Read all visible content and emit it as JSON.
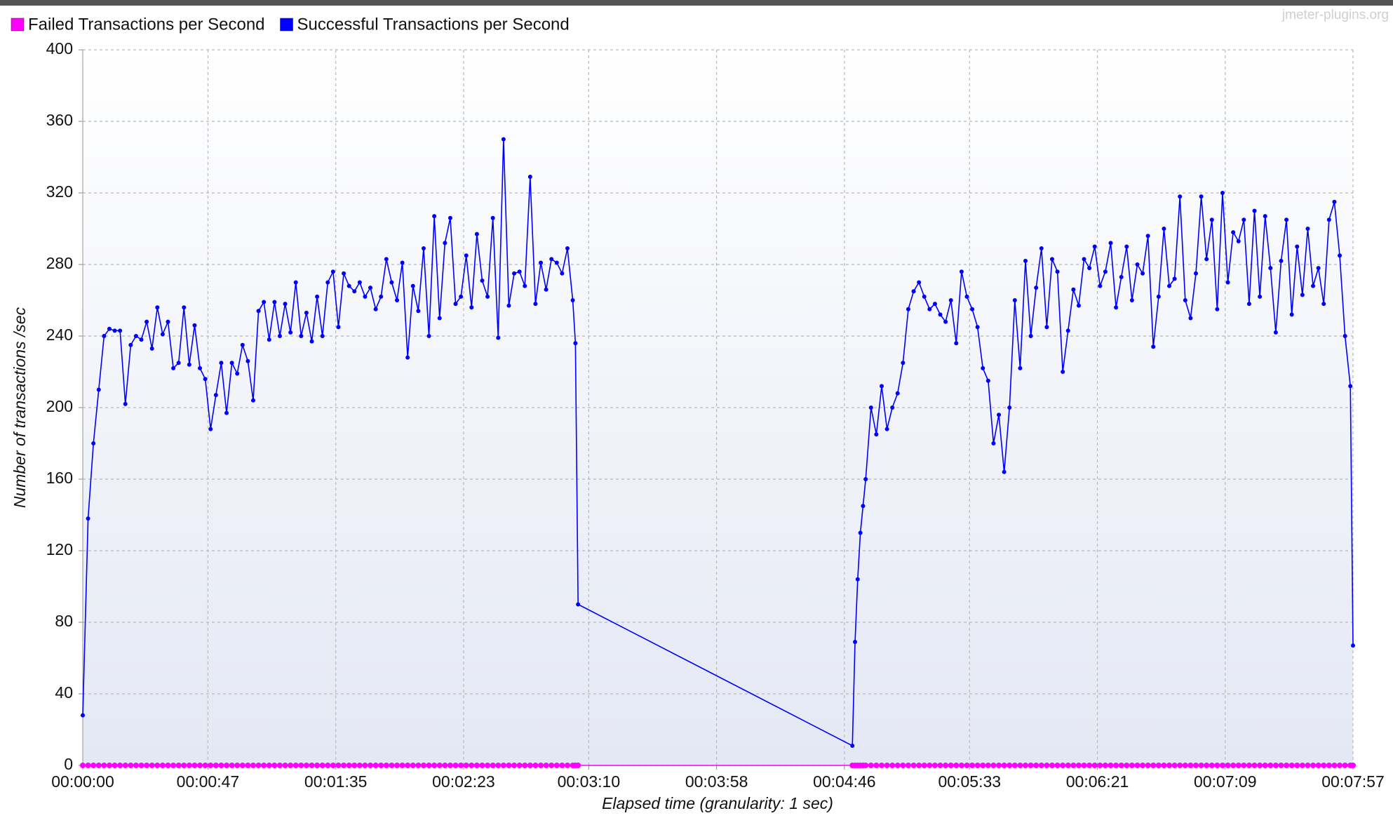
{
  "chart_data": {
    "type": "line",
    "watermark": "jmeter-plugins.org",
    "x_label": "Elapsed time (granularity: 1 sec)",
    "y_label": "Number of transactions /sec",
    "xlim": [
      0,
      477
    ],
    "ylim": [
      0,
      400
    ],
    "xticks": [
      {
        "value": 0,
        "label": "00:00:00"
      },
      {
        "value": 47,
        "label": "00:00:47"
      },
      {
        "value": 95,
        "label": "00:01:35"
      },
      {
        "value": 143,
        "label": "00:02:23"
      },
      {
        "value": 190,
        "label": "00:03:10"
      },
      {
        "value": 238,
        "label": "00:03:58"
      },
      {
        "value": 286,
        "label": "00:04:46"
      },
      {
        "value": 333,
        "label": "00:05:33"
      },
      {
        "value": 381,
        "label": "00:06:21"
      },
      {
        "value": 429,
        "label": "00:07:09"
      },
      {
        "value": 477,
        "label": "00:07:57"
      }
    ],
    "yticks": [
      0,
      40,
      80,
      120,
      160,
      200,
      240,
      280,
      320,
      360,
      400
    ],
    "grid": true,
    "legend": "top-left",
    "x": [
      0,
      2,
      4,
      6,
      8,
      10,
      12,
      14,
      16,
      18,
      20,
      22,
      24,
      26,
      28,
      30,
      32,
      34,
      36,
      38,
      40,
      42,
      44,
      46,
      48,
      50,
      52,
      54,
      56,
      58,
      60,
      62,
      64,
      66,
      68,
      70,
      72,
      74,
      76,
      78,
      80,
      82,
      84,
      86,
      88,
      90,
      92,
      94,
      96,
      98,
      100,
      102,
      104,
      106,
      108,
      110,
      112,
      114,
      116,
      118,
      120,
      122,
      124,
      126,
      128,
      130,
      132,
      134,
      136,
      138,
      140,
      142,
      144,
      146,
      148,
      150,
      152,
      154,
      156,
      158,
      160,
      162,
      164,
      166,
      168,
      170,
      172,
      174,
      176,
      178,
      180,
      182,
      184,
      185,
      186,
      289,
      290,
      291,
      292,
      293,
      294,
      296,
      298,
      300,
      302,
      304,
      306,
      308,
      310,
      312,
      314,
      316,
      318,
      320,
      322,
      324,
      326,
      328,
      330,
      332,
      334,
      336,
      338,
      340,
      342,
      344,
      346,
      348,
      350,
      352,
      354,
      356,
      358,
      360,
      362,
      364,
      366,
      368,
      370,
      372,
      374,
      376,
      378,
      380,
      382,
      384,
      386,
      388,
      390,
      392,
      394,
      396,
      398,
      400,
      402,
      404,
      406,
      408,
      410,
      412,
      414,
      416,
      418,
      420,
      422,
      424,
      426,
      428,
      430,
      432,
      434,
      436,
      438,
      440,
      442,
      444,
      446,
      448,
      450,
      452,
      454,
      456,
      458,
      460,
      462,
      464,
      466,
      468,
      470,
      472,
      474,
      476,
      477
    ],
    "series": [
      {
        "name": "Failed Transactions per Second",
        "color": "#ff00ff",
        "values": [
          0,
          0,
          0,
          0,
          0,
          0,
          0,
          0,
          0,
          0,
          0,
          0,
          0,
          0,
          0,
          0,
          0,
          0,
          0,
          0,
          0,
          0,
          0,
          0,
          0,
          0,
          0,
          0,
          0,
          0,
          0,
          0,
          0,
          0,
          0,
          0,
          0,
          0,
          0,
          0,
          0,
          0,
          0,
          0,
          0,
          0,
          0,
          0,
          0,
          0,
          0,
          0,
          0,
          0,
          0,
          0,
          0,
          0,
          0,
          0,
          0,
          0,
          0,
          0,
          0,
          0,
          0,
          0,
          0,
          0,
          0,
          0,
          0,
          0,
          0,
          0,
          0,
          0,
          0,
          0,
          0,
          0,
          0,
          0,
          0,
          0,
          0,
          0,
          0,
          0,
          0,
          0,
          0,
          0,
          0,
          0,
          0,
          0,
          0,
          0,
          0,
          0,
          0,
          0,
          0,
          0,
          0,
          0,
          0,
          0,
          0,
          0,
          0,
          0,
          0,
          0,
          0,
          0,
          0,
          0,
          0,
          0,
          0,
          0,
          0,
          0,
          0,
          0,
          0,
          0,
          0,
          0,
          0,
          0,
          0,
          0,
          0,
          0,
          0,
          0,
          0,
          0,
          0,
          0,
          0,
          0,
          0,
          0,
          0,
          0,
          0,
          0,
          0,
          0,
          0,
          0,
          0,
          0,
          0,
          0,
          0,
          0,
          0,
          0,
          0,
          0,
          0,
          0,
          0,
          0,
          0,
          0,
          0,
          0,
          0,
          0,
          0,
          0,
          0,
          0,
          0,
          0,
          0,
          0,
          0,
          0,
          0,
          0,
          0,
          0,
          0,
          0,
          0
        ]
      },
      {
        "name": "Successful Transactions per Second",
        "color": "#0000ff",
        "values": [
          28,
          138,
          180,
          210,
          240,
          244,
          243,
          243,
          202,
          235,
          240,
          238,
          248,
          233,
          256,
          241,
          248,
          222,
          225,
          256,
          224,
          246,
          222,
          216,
          188,
          207,
          225,
          197,
          225,
          219,
          235,
          226,
          204,
          254,
          259,
          238,
          259,
          240,
          258,
          242,
          270,
          240,
          253,
          237,
          262,
          240,
          270,
          276,
          245,
          275,
          268,
          265,
          270,
          262,
          267,
          255,
          262,
          283,
          270,
          260,
          281,
          228,
          268,
          254,
          289,
          240,
          307,
          250,
          292,
          306,
          258,
          262,
          285,
          256,
          297,
          271,
          262,
          306,
          239,
          350,
          257,
          275,
          276,
          268,
          329,
          258,
          281,
          266,
          283,
          281,
          275,
          289,
          260,
          236,
          90,
          11,
          69,
          104,
          130,
          145,
          160,
          200,
          185,
          212,
          188,
          200,
          208,
          225,
          255,
          265,
          270,
          262,
          255,
          258,
          252,
          248,
          260,
          236,
          276,
          262,
          255,
          245,
          222,
          215,
          180,
          196,
          164,
          200,
          260,
          222,
          282,
          240,
          267,
          289,
          245,
          283,
          276,
          220,
          243,
          266,
          257,
          283,
          278,
          290,
          268,
          276,
          292,
          256,
          273,
          290,
          260,
          280,
          275,
          296,
          234,
          262,
          300,
          268,
          272,
          318,
          260,
          250,
          275,
          318,
          283,
          305,
          255,
          320,
          270,
          298,
          293,
          305,
          258,
          310,
          262,
          307,
          278,
          242,
          282,
          305,
          252,
          290,
          263,
          300,
          268,
          278,
          258,
          305,
          315,
          285,
          240,
          212,
          67
        ]
      }
    ]
  }
}
